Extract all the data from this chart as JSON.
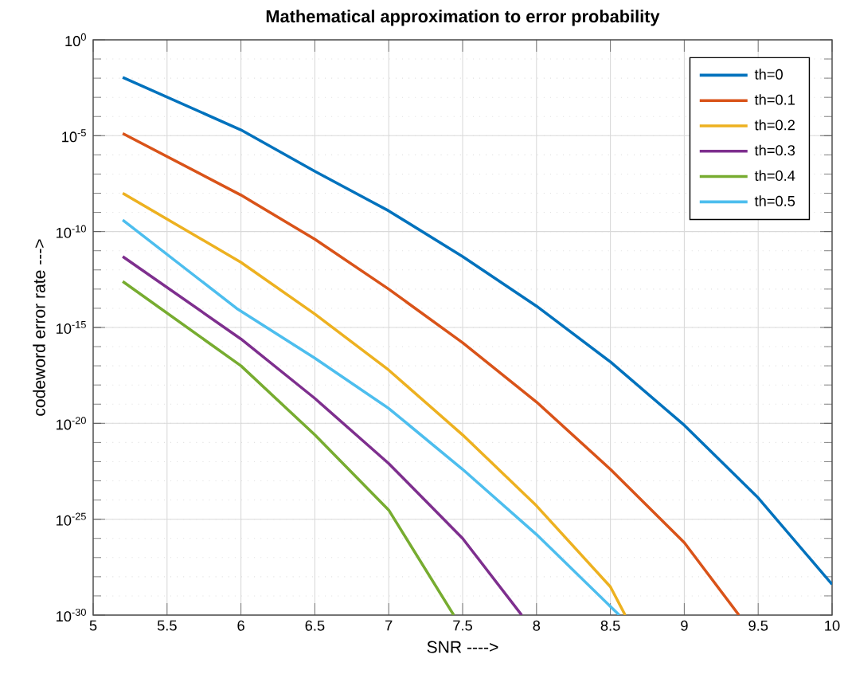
{
  "chart_data": {
    "type": "line",
    "title": "Mathematical approximation to error probability",
    "xlabel": "SNR ---->",
    "ylabel": "codeword error rate --->",
    "log": "y",
    "grid": true,
    "legend": "top right",
    "line_style": "solid",
    "marker": "none",
    "xlim": [
      5,
      10
    ],
    "xticks": [
      5,
      5.5,
      6,
      6.5,
      7,
      7.5,
      8,
      8.5,
      9,
      9.5,
      10
    ],
    "ylim": [
      1e-30,
      1
    ],
    "yticks": [
      {
        "value": 1e-30,
        "label": "10$^{-30}$"
      },
      {
        "value": 1e-25,
        "label": "10$^{-25}$"
      },
      {
        "value": 1e-20,
        "label": "10$^{-20}$"
      },
      {
        "value": 1e-15,
        "label": "10$^{-15}$"
      },
      {
        "value": 1e-10,
        "label": "10$^{-10}$"
      },
      {
        "value": 1e-05,
        "label": "10$^{-5}$"
      },
      {
        "value": 1,
        "label": "10$^{0}$"
      }
    ],
    "series": [
      {
        "name": "th=0",
        "color": "#0072bd",
        "x": [
          5.2,
          6,
          6.5,
          7,
          7.5,
          8,
          8.5,
          9,
          9.5,
          10
        ],
        "values": [
          0.011,
          2e-05,
          1.4e-07,
          1.2e-09,
          5e-12,
          1.3e-14,
          1.6e-17,
          8e-21,
          1.3e-24,
          4e-29
        ]
      },
      {
        "name": "th=0.1",
        "color": "#d95319",
        "x": [
          5.2,
          6,
          6.5,
          7,
          7.5,
          8,
          8.5,
          9,
          9.37
        ],
        "values": [
          1.3e-05,
          8e-09,
          4e-11,
          1e-13,
          1.6e-16,
          1.3e-19,
          4e-23,
          6e-27,
          1e-30
        ]
      },
      {
        "name": "th=0.2",
        "color": "#edb120",
        "x": [
          5.2,
          6,
          6.5,
          7,
          7.5,
          8,
          8.5,
          8.6
        ],
        "values": [
          1e-08,
          2.5e-12,
          5e-15,
          6e-18,
          2.5e-21,
          5e-25,
          3e-29,
          1e-30
        ]
      },
      {
        "name": "th=0.3",
        "color": "#7e2f8e",
        "x": [
          5.2,
          6,
          6.5,
          7,
          7.5,
          7.9
        ],
        "values": [
          5e-12,
          2.5e-16,
          2e-19,
          8e-23,
          1e-26,
          1e-30
        ]
      },
      {
        "name": "th=0.4",
        "color": "#77ac30",
        "x": [
          5.2,
          6,
          6.5,
          7,
          7.44
        ],
        "values": [
          2.5e-13,
          1e-17,
          2.5e-21,
          3e-25,
          1e-30
        ]
      },
      {
        "name": "th=0.5",
        "color": "#4dbeee",
        "x": [
          5.2,
          5.97,
          6.5,
          7,
          7.5,
          8,
          8.56
        ],
        "values": [
          4e-10,
          1e-14,
          2.5e-17,
          6e-20,
          4e-23,
          1.6e-26,
          1e-30
        ]
      }
    ]
  }
}
